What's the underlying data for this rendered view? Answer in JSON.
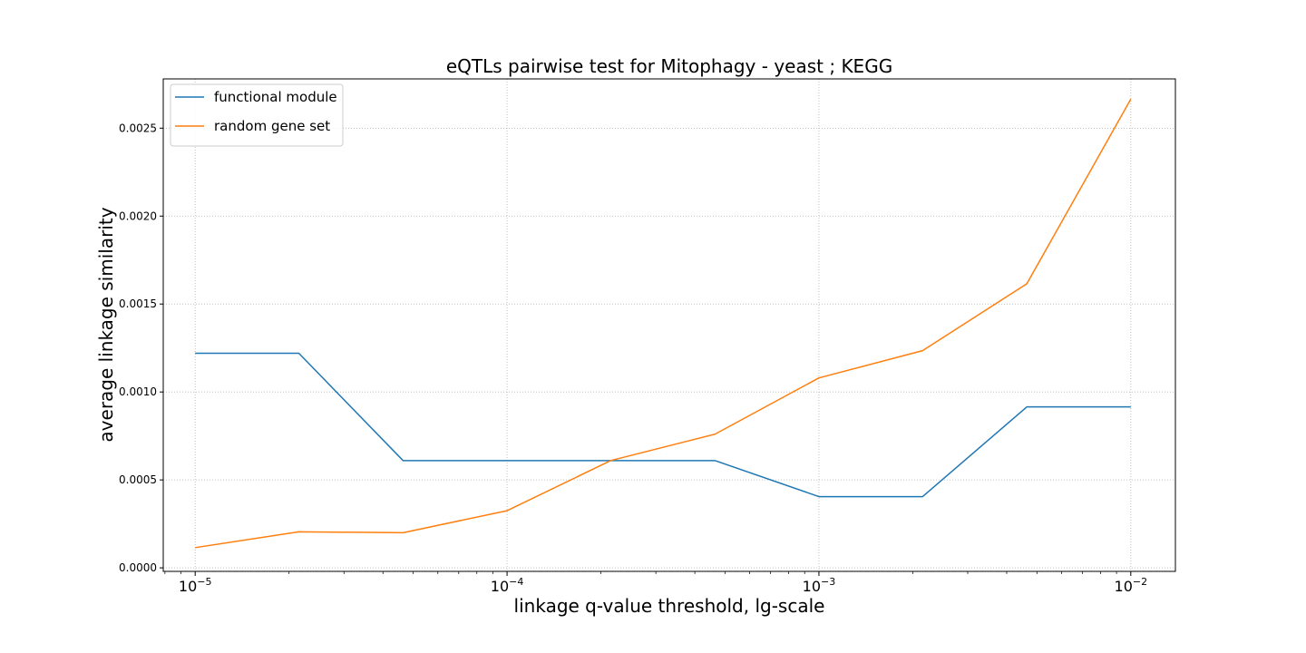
{
  "chart_data": {
    "type": "line",
    "title": "eQTLs pairwise test for Mitophagy - yeast ; KEGG",
    "xlabel": "linkage q-value threshold, lg-scale",
    "ylabel": "average linkage similarity",
    "x_scale": "log",
    "xlim": [
      7.9e-06,
      0.0139
    ],
    "ylim": [
      -2e-05,
      0.00278
    ],
    "x_ticks": [
      {
        "value": 1e-05,
        "base": "10",
        "exp": "−5"
      },
      {
        "value": 0.0001,
        "base": "10",
        "exp": "−4"
      },
      {
        "value": 0.001,
        "base": "10",
        "exp": "−3"
      },
      {
        "value": 0.01,
        "base": "10",
        "exp": "−2"
      }
    ],
    "y_ticks": [
      {
        "value": 0.0,
        "label": "0.0000"
      },
      {
        "value": 0.0005,
        "label": "0.0005"
      },
      {
        "value": 0.001,
        "label": "0.0010"
      },
      {
        "value": 0.0015,
        "label": "0.0015"
      },
      {
        "value": 0.002,
        "label": "0.0020"
      },
      {
        "value": 0.0025,
        "label": "0.0025"
      }
    ],
    "grid": true,
    "grid_style": "dotted",
    "legend_position": "top-left",
    "x": [
      1e-05,
      2.15e-05,
      4.64e-05,
      0.0001,
      0.000215,
      0.000464,
      0.001,
      0.00215,
      0.00464,
      0.01
    ],
    "series": [
      {
        "name": "functional module",
        "color": "#1f77b4",
        "values": [
          0.00122,
          0.00122,
          0.00061,
          0.00061,
          0.00061,
          0.00061,
          0.000405,
          0.000405,
          0.000915,
          0.000915
        ]
      },
      {
        "name": "random gene set",
        "color": "#ff7f0e",
        "values": [
          0.000115,
          0.000205,
          0.0002,
          0.000325,
          0.00061,
          0.00076,
          0.00108,
          0.001235,
          0.001615,
          0.002665
        ]
      }
    ]
  }
}
